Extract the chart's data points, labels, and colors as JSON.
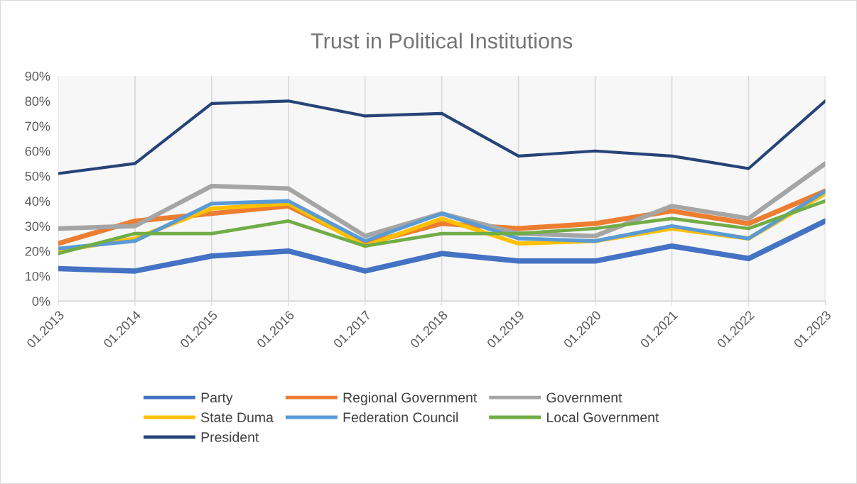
{
  "chart_data": {
    "type": "line",
    "title": "Trust in Political Institutions",
    "categories": [
      "01.2013",
      "01.2014",
      "01.2015",
      "01.2016",
      "01.2017",
      "01.2018",
      "01.2019",
      "01.2020",
      "01.2021",
      "01.2022",
      "01.2023"
    ],
    "series": [
      {
        "name": "Party",
        "color": "#4472c4",
        "values": [
          13,
          12,
          18,
          20,
          12,
          19,
          16,
          16,
          22,
          17,
          32
        ]
      },
      {
        "name": "Regional Government",
        "color": "#ed7d31",
        "values": [
          23,
          32,
          35,
          38,
          23,
          31,
          29,
          31,
          36,
          31,
          44
        ]
      },
      {
        "name": "Government",
        "color": "#a5a5a5",
        "values": [
          29,
          30,
          46,
          45,
          26,
          35,
          27,
          26,
          38,
          33,
          55
        ]
      },
      {
        "name": "State Duma",
        "color": "#ffc000",
        "values": [
          20,
          25,
          37,
          39,
          22,
          33,
          23,
          24,
          29,
          25,
          43
        ]
      },
      {
        "name": "Federation Council",
        "color": "#5b9bd5",
        "values": [
          21,
          24,
          39,
          40,
          24,
          35,
          25,
          24,
          30,
          25,
          44
        ]
      },
      {
        "name": "Local Government",
        "color": "#70ad47",
        "values": [
          19,
          27,
          27,
          32,
          22,
          27,
          27,
          29,
          33,
          29,
          40
        ]
      },
      {
        "name": "President",
        "color": "#264478",
        "values": [
          51,
          55,
          79,
          80,
          74,
          75,
          58,
          60,
          58,
          53,
          80
        ]
      }
    ],
    "ylim": [
      0,
      90
    ],
    "yticks": [
      {
        "value": 0,
        "label": "0%"
      },
      {
        "value": 10,
        "label": "10%"
      },
      {
        "value": 20,
        "label": "20%"
      },
      {
        "value": 30,
        "label": "30%"
      },
      {
        "value": 40,
        "label": "40%"
      },
      {
        "value": 50,
        "label": "50%"
      },
      {
        "value": 60,
        "label": "60%"
      },
      {
        "value": 70,
        "label": "70%"
      },
      {
        "value": 80,
        "label": "80%"
      },
      {
        "value": 90,
        "label": "90%"
      }
    ],
    "grid": "x",
    "legend": "bottom",
    "marker": "none",
    "line_style": "solid"
  }
}
